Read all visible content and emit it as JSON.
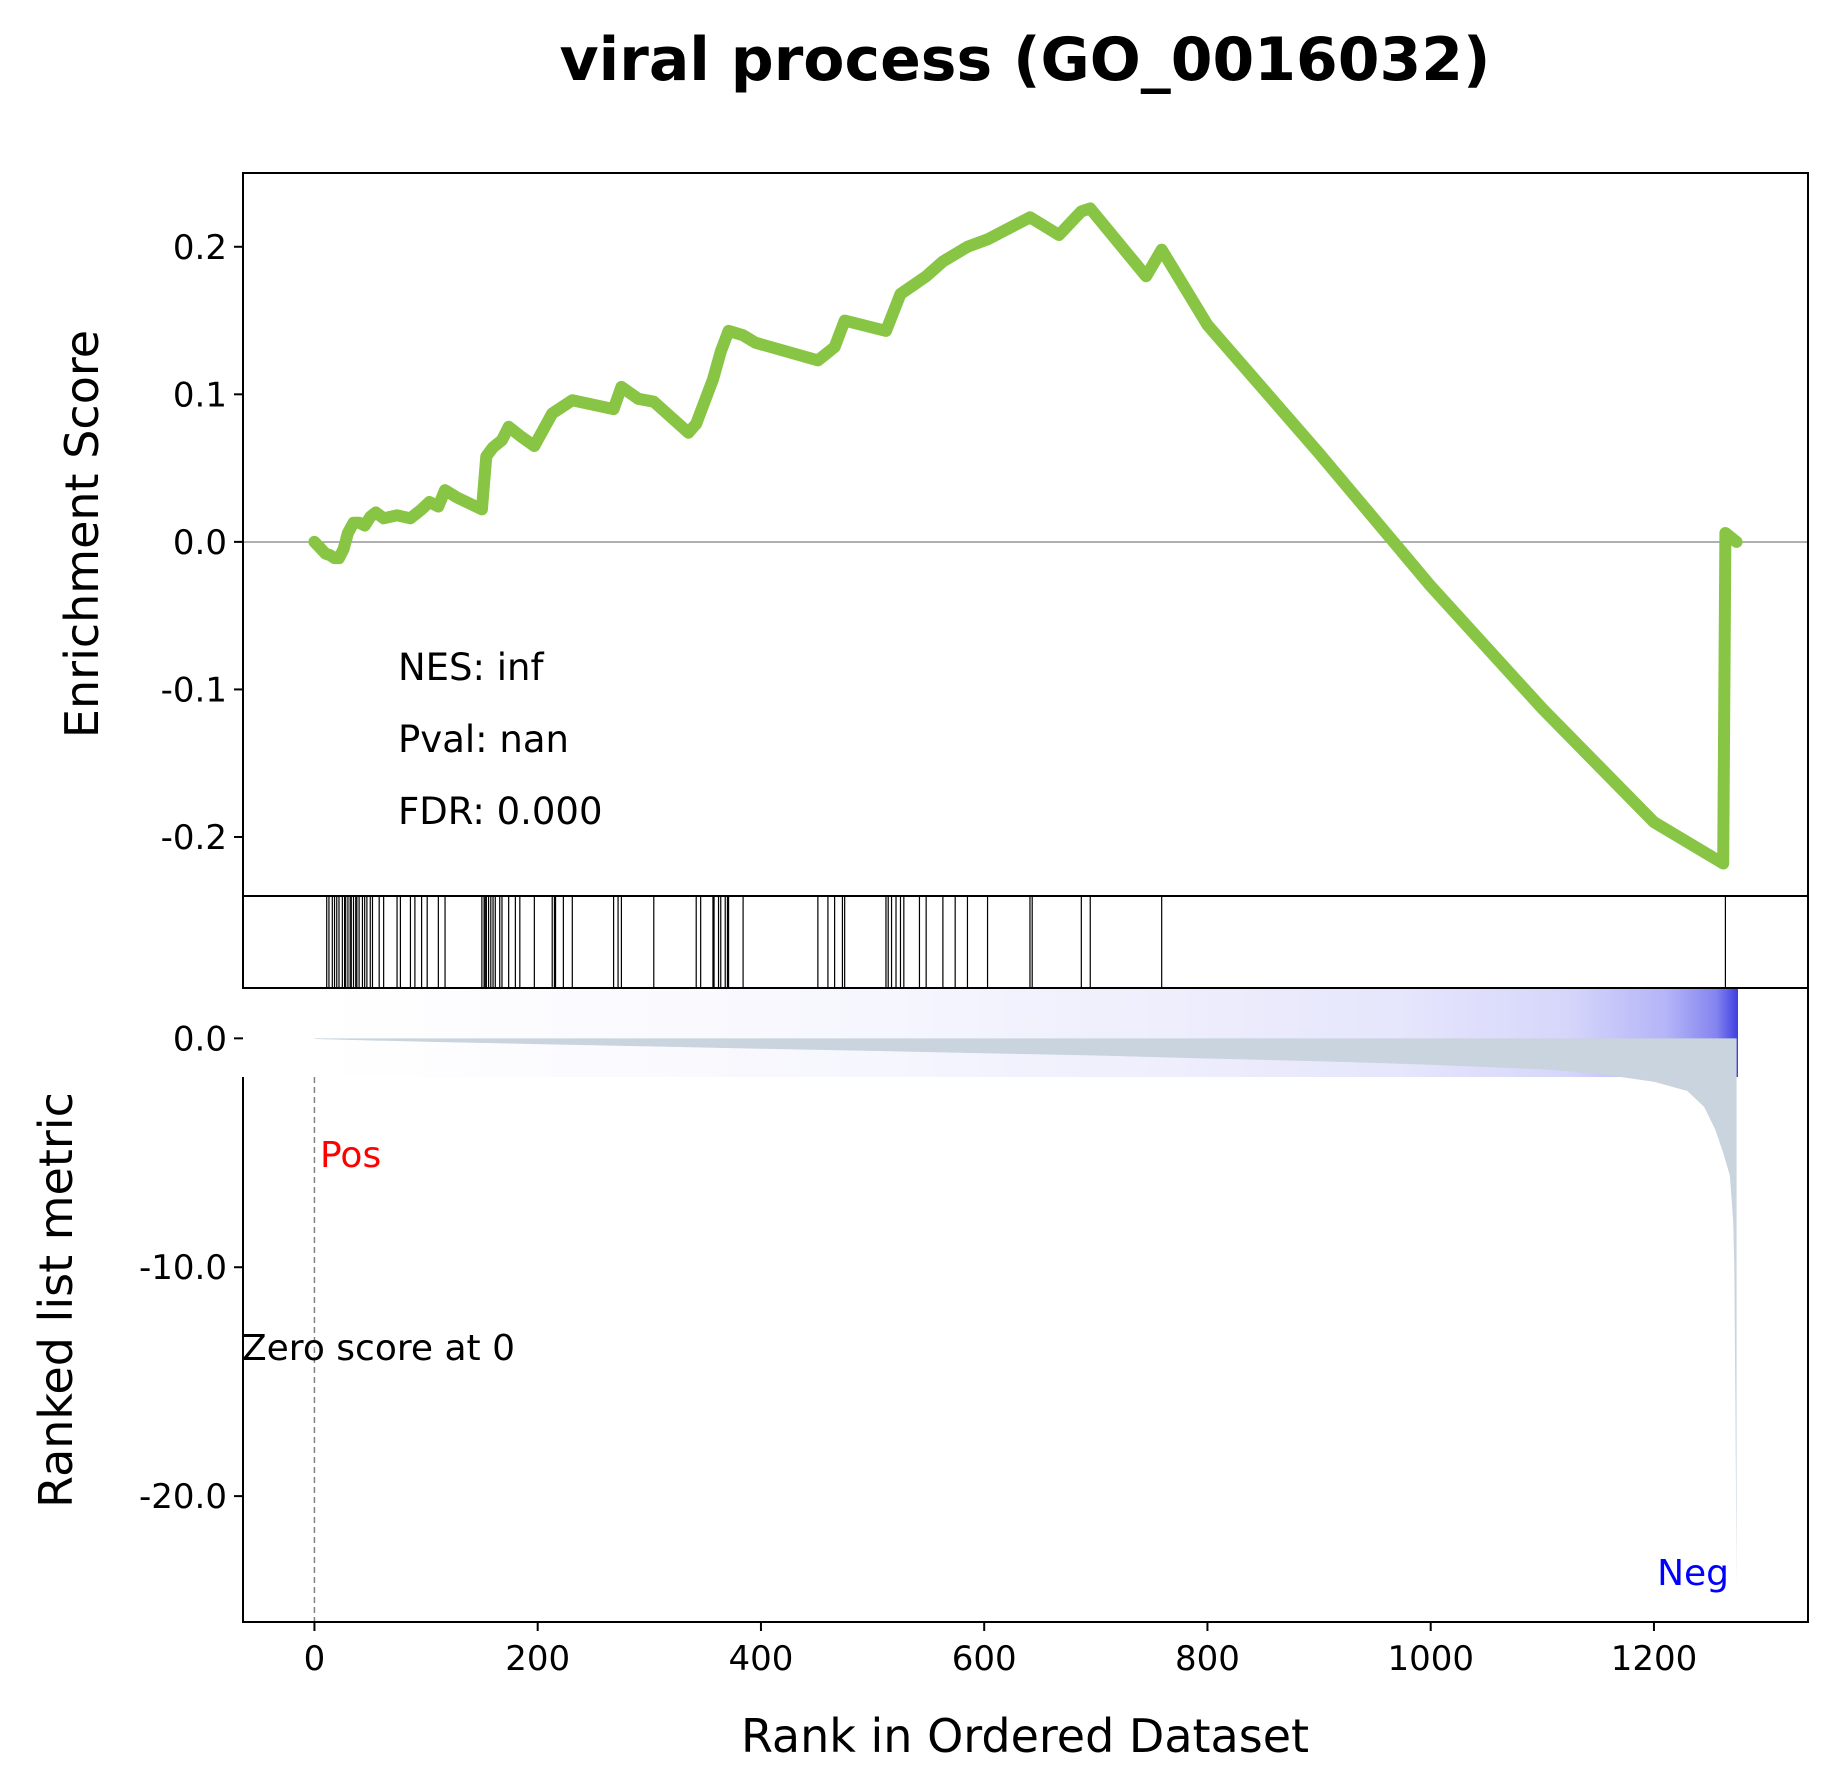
{
  "title": "viral process (GO_0016032)",
  "xlabel": "Rank in Ordered Dataset",
  "es_ylabel": "Enrichment Score",
  "rank_ylabel": "Ranked list metric",
  "stats": [
    "NES: inf",
    "Pval: nan",
    "FDR: 0.000"
  ],
  "pos_label": "Pos",
  "neg_label": "Neg",
  "zero_label": "Zero score at 0",
  "colors": {
    "es_line": "#88c544",
    "metric_fill": "#c9d4de",
    "pos_label": "#ff0000",
    "neg_label": "#0000ff"
  },
  "chart_data": {
    "type": "line",
    "n_genes": 1274,
    "xlim": [
      -64,
      1338
    ],
    "x_ticks": [
      0,
      200,
      400,
      600,
      800,
      1000,
      1200
    ],
    "es": {
      "ylim": [
        -0.24,
        0.25
      ],
      "y_ticks": [
        0.2,
        0.1,
        0.0,
        -0.1,
        -0.2
      ],
      "y_tick_labels": [
        "0.2",
        "0.1",
        "0.0",
        "-0.1",
        "-0.2"
      ],
      "hits": [
        11,
        13,
        16,
        18,
        20,
        22,
        25,
        27,
        28,
        30,
        32,
        33,
        35,
        37,
        38,
        40,
        43,
        45,
        47,
        50,
        52,
        58,
        62,
        74,
        77,
        86,
        90,
        96,
        101,
        111,
        117,
        150,
        152,
        153,
        154,
        156,
        158,
        160,
        162,
        166,
        168,
        174,
        180,
        184,
        197,
        213,
        215,
        216,
        223,
        231,
        268,
        272,
        275,
        304,
        342,
        346,
        357,
        358,
        362,
        364,
        368,
        370,
        371,
        384,
        451,
        460,
        466,
        473,
        475,
        512,
        514,
        517,
        521,
        525,
        528,
        542,
        548,
        563,
        574,
        585,
        603,
        641,
        643,
        687,
        695,
        759,
        1264
      ],
      "points": [
        [
          0,
          0.0
        ],
        [
          5,
          -0.004
        ],
        [
          10,
          -0.008
        ],
        [
          14,
          -0.009
        ],
        [
          18,
          -0.011
        ],
        [
          22,
          -0.011
        ],
        [
          26,
          -0.005
        ],
        [
          30,
          0.006
        ],
        [
          35,
          0.013
        ],
        [
          40,
          0.013
        ],
        [
          45,
          0.011
        ],
        [
          50,
          0.017
        ],
        [
          55,
          0.02
        ],
        [
          62,
          0.016
        ],
        [
          74,
          0.018
        ],
        [
          86,
          0.016
        ],
        [
          96,
          0.022
        ],
        [
          103,
          0.027
        ],
        [
          111,
          0.024
        ],
        [
          117,
          0.035
        ],
        [
          128,
          0.03
        ],
        [
          150,
          0.022
        ],
        [
          154,
          0.058
        ],
        [
          160,
          0.064
        ],
        [
          168,
          0.069
        ],
        [
          174,
          0.078
        ],
        [
          184,
          0.072
        ],
        [
          197,
          0.065
        ],
        [
          213,
          0.087
        ],
        [
          223,
          0.092
        ],
        [
          231,
          0.096
        ],
        [
          268,
          0.09
        ],
        [
          275,
          0.105
        ],
        [
          290,
          0.097
        ],
        [
          304,
          0.095
        ],
        [
          335,
          0.074
        ],
        [
          342,
          0.08
        ],
        [
          357,
          0.11
        ],
        [
          364,
          0.129
        ],
        [
          371,
          0.143
        ],
        [
          384,
          0.14
        ],
        [
          395,
          0.135
        ],
        [
          451,
          0.123
        ],
        [
          466,
          0.132
        ],
        [
          475,
          0.15
        ],
        [
          512,
          0.143
        ],
        [
          525,
          0.168
        ],
        [
          548,
          0.18
        ],
        [
          563,
          0.19
        ],
        [
          585,
          0.2
        ],
        [
          603,
          0.205
        ],
        [
          641,
          0.22
        ],
        [
          667,
          0.208
        ],
        [
          687,
          0.224
        ],
        [
          695,
          0.226
        ],
        [
          745,
          0.18
        ],
        [
          759,
          0.198
        ],
        [
          800,
          0.147
        ],
        [
          900,
          0.06
        ],
        [
          1000,
          -0.03
        ],
        [
          1100,
          -0.113
        ],
        [
          1200,
          -0.19
        ],
        [
          1262,
          -0.218
        ],
        [
          1264,
          0.006
        ],
        [
          1274,
          0.0
        ]
      ]
    },
    "metric": {
      "ylim": [
        -25.5,
        2.2
      ],
      "y_ticks": [
        0,
        -10,
        -20
      ],
      "y_tick_labels": [
        "0.0",
        "-10.0",
        "-20.0"
      ],
      "curve": [
        [
          0,
          -0.03
        ],
        [
          100,
          -0.15
        ],
        [
          200,
          -0.25
        ],
        [
          300,
          -0.35
        ],
        [
          400,
          -0.45
        ],
        [
          500,
          -0.55
        ],
        [
          600,
          -0.65
        ],
        [
          700,
          -0.75
        ],
        [
          800,
          -0.88
        ],
        [
          900,
          -1.0
        ],
        [
          1000,
          -1.15
        ],
        [
          1100,
          -1.35
        ],
        [
          1150,
          -1.55
        ],
        [
          1200,
          -1.9
        ],
        [
          1230,
          -2.3
        ],
        [
          1245,
          -3.0
        ],
        [
          1255,
          -4.0
        ],
        [
          1262,
          -5.0
        ],
        [
          1268,
          -6.0
        ],
        [
          1271,
          -8.0
        ],
        [
          1272,
          -10.0
        ],
        [
          1273,
          -16.0
        ],
        [
          1274,
          -24.2
        ]
      ],
      "zero_cross_rank": 0
    }
  }
}
